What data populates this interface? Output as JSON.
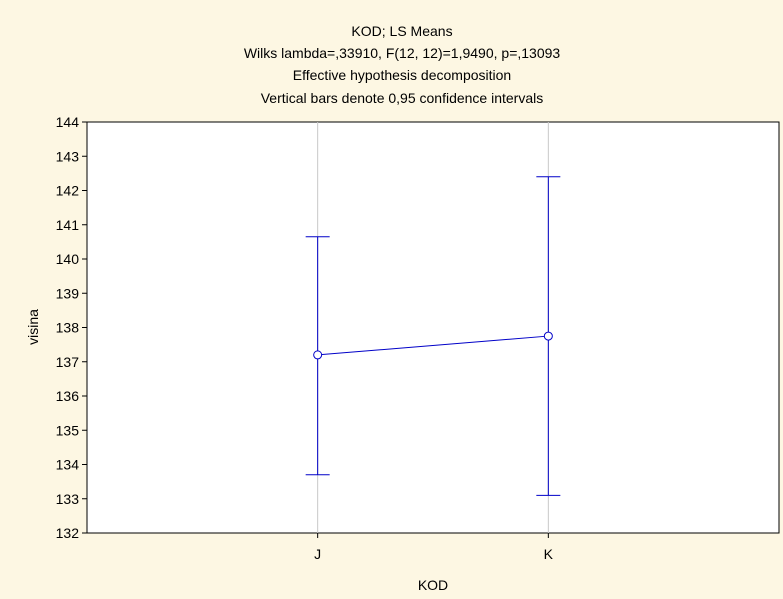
{
  "chart_data": {
    "type": "line",
    "title_lines": [
      "KOD; LS Means",
      "Wilks lambda=,33910, F(12, 12)=1,9490, p=,13093",
      "Effective hypothesis decomposition",
      "Vertical bars denote 0,95 confidence intervals"
    ],
    "xlabel": "KOD",
    "ylabel": "visina",
    "categories": [
      "J",
      "K"
    ],
    "series": [
      {
        "values": [
          137.2,
          137.75
        ],
        "ci_lower": [
          133.7,
          133.1
        ],
        "ci_upper": [
          140.65,
          142.4
        ]
      }
    ],
    "ylim": [
      132,
      144
    ],
    "yticks": [
      132,
      133,
      134,
      135,
      136,
      137,
      138,
      139,
      140,
      141,
      142,
      143,
      144
    ],
    "grid": "vertical",
    "colors": {
      "background": "#fdf7e3",
      "plot_area": "#ffffff",
      "series": "#0000c8",
      "grid": "#c8c8c8",
      "axis": "#000000"
    }
  }
}
